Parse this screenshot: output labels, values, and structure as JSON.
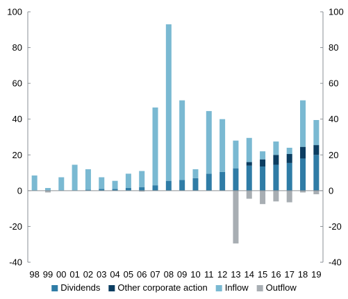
{
  "chart_data": {
    "type": "bar",
    "stacked": true,
    "categories": [
      "98",
      "99",
      "00",
      "01",
      "02",
      "03",
      "04",
      "05",
      "06",
      "07",
      "08",
      "09",
      "10",
      "11",
      "12",
      "13",
      "14",
      "15",
      "16",
      "17",
      "18",
      "19"
    ],
    "series": [
      {
        "name": "Dividends",
        "color": "#2f7ca6",
        "values": [
          0,
          0,
          0,
          0,
          0.5,
          1,
          1,
          1.5,
          2,
          3,
          5.5,
          6,
          7,
          9.5,
          10.5,
          12.5,
          14,
          13.5,
          14.5,
          15.5,
          18,
          20
        ]
      },
      {
        "name": "Other corporate action",
        "color": "#0b3d61",
        "values": [
          0,
          0,
          0,
          0,
          0,
          0,
          0,
          0,
          0,
          0,
          0,
          0,
          0,
          0,
          0,
          0,
          2,
          4,
          5.5,
          5,
          6.5,
          5.5
        ]
      },
      {
        "name": "Inflow",
        "color": "#7ab9d2",
        "values": [
          8.5,
          1.5,
          7.5,
          14.5,
          11.5,
          6.5,
          4.5,
          8,
          9,
          43.5,
          87.5,
          44.5,
          5,
          35,
          29.5,
          15.5,
          13.5,
          4.5,
          7.5,
          3.5,
          26,
          14
        ]
      },
      {
        "name": "Outflow",
        "color": "#a8aeb3",
        "values": [
          0,
          -1,
          0,
          0,
          0,
          0,
          0,
          0,
          -0.5,
          0,
          0,
          0,
          0,
          0,
          0,
          -29.5,
          -4.5,
          -7.5,
          -6,
          -6.5,
          -1,
          -2
        ]
      }
    ],
    "ylim": [
      -40,
      100
    ],
    "yticks": [
      "100",
      "80",
      "60",
      "40",
      "20",
      "0",
      "-20",
      "-40"
    ],
    "ytick_values": [
      100,
      80,
      60,
      40,
      20,
      0,
      -20,
      -40
    ],
    "grid": false,
    "legend_position": "bottom",
    "title": "",
    "xlabel": "",
    "ylabel": ""
  }
}
